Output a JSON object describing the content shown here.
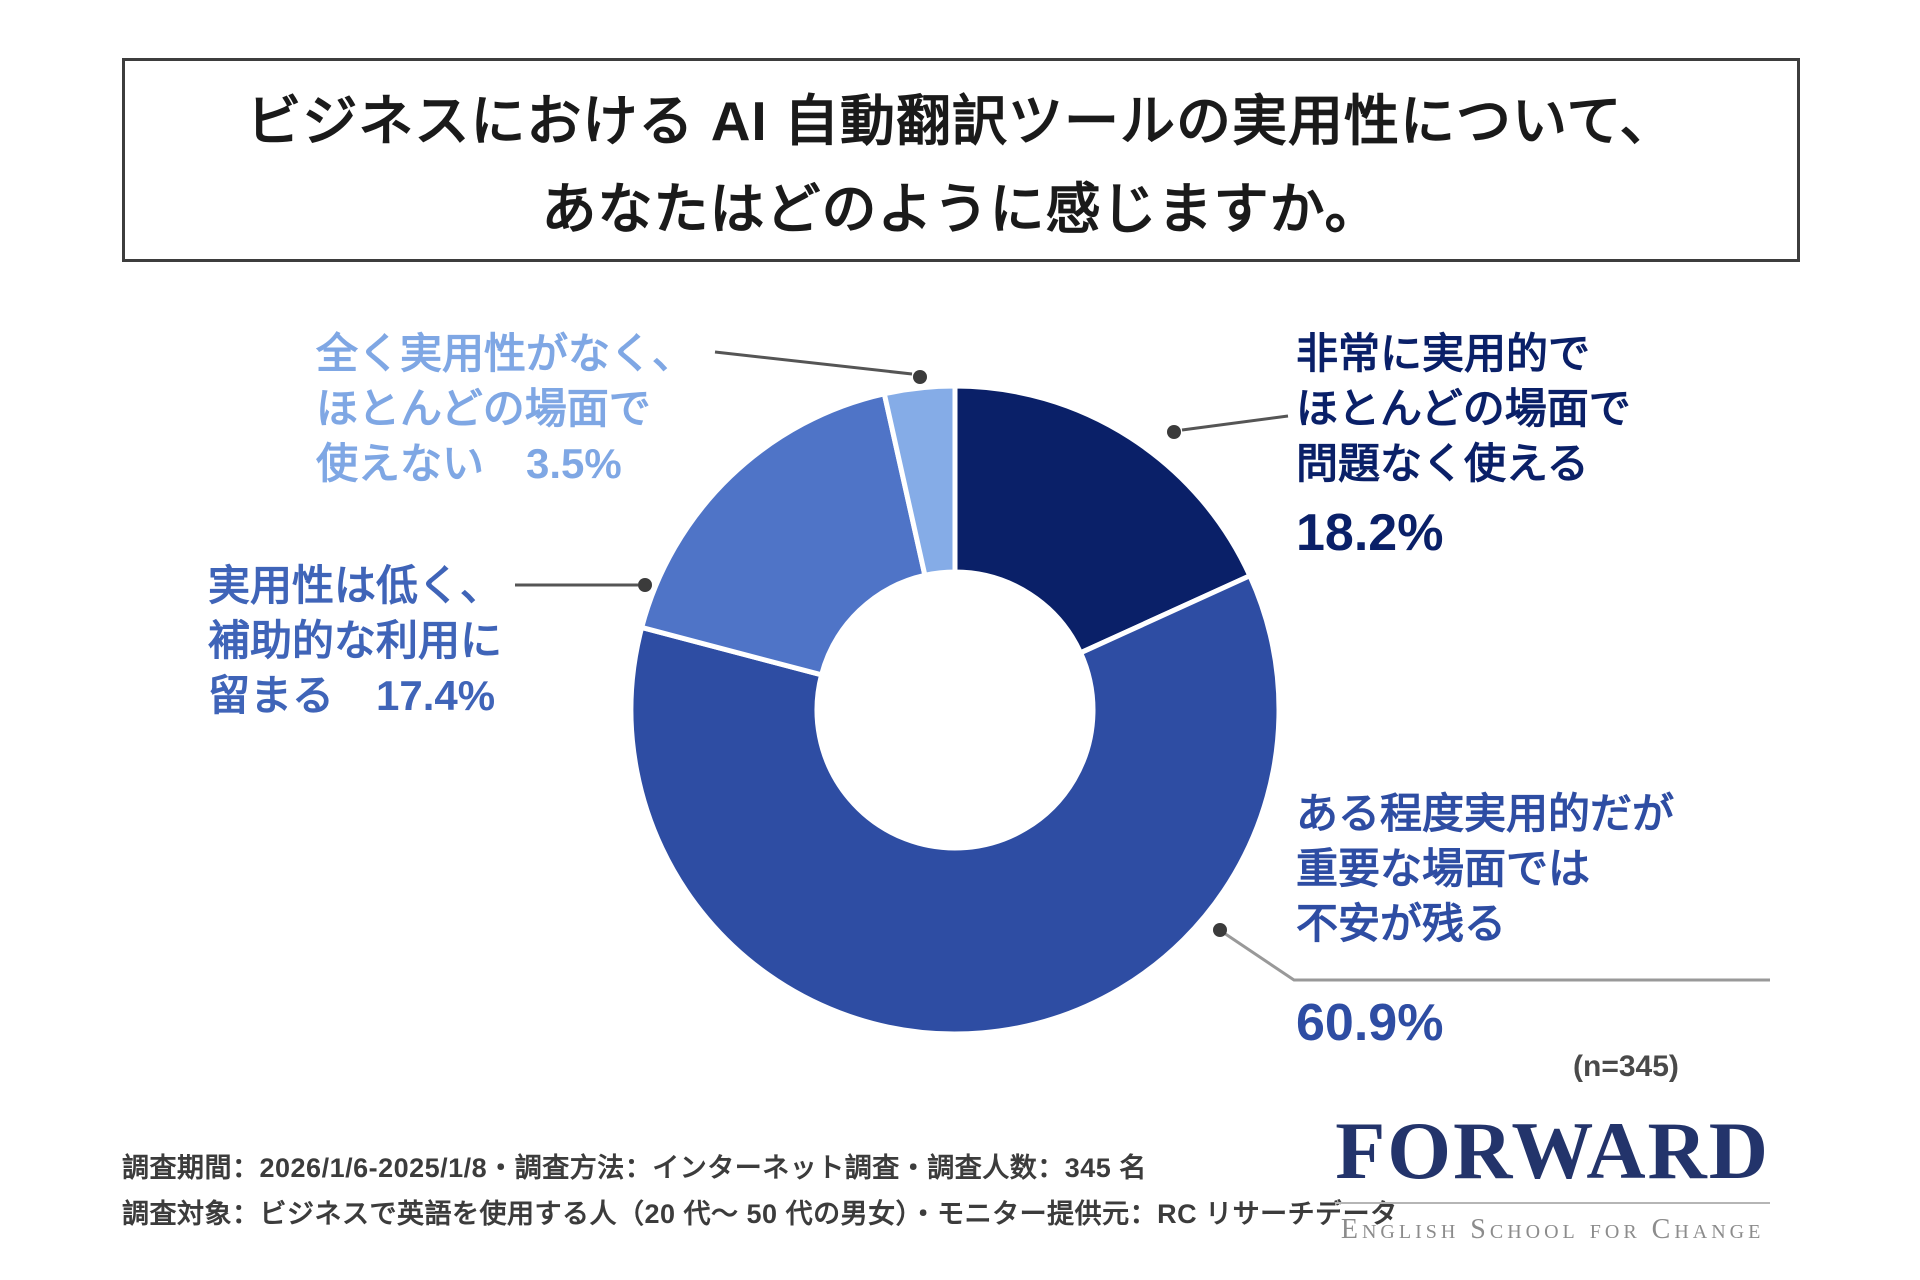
{
  "title": {
    "line1": "ビジネスにおける AI 自動翻訳ツールの実用性について、",
    "line2": "あなたはどのように感じますか。"
  },
  "chart_data": {
    "type": "pie",
    "subtype": "donut",
    "title": "ビジネスにおける AI 自動翻訳ツールの実用性について、あなたはどのように感じますか。",
    "unit": "%",
    "n": 345,
    "start_angle_deg": 0,
    "direction": "clockwise",
    "legend_position": "callouts",
    "segments": [
      {
        "label": "非常に実用的でほとんどの場面で問題なく使える",
        "value": 18.2,
        "color": "#0a2068"
      },
      {
        "label": "ある程度実用的だが重要な場面では不安が残る",
        "value": 60.9,
        "color": "#2e4da3"
      },
      {
        "label": "実用性は低く、補助的な利用に留まる",
        "value": 17.4,
        "color": "#4f74c7"
      },
      {
        "label": "全く実用性がなく、ほとんどの場面で使えない",
        "value": 3.5,
        "color": "#85ace7"
      }
    ]
  },
  "callouts": {
    "very_practical": {
      "line1": "非常に実用的で",
      "line2": "ほとんどの場面で",
      "line3": "問題なく使える",
      "pct": "18.2%"
    },
    "somewhat_practical": {
      "line1": "ある程度実用的だが",
      "line2": "重要な場面では",
      "line3": "不安が残る",
      "pct": "60.9%"
    },
    "low_practicality": {
      "line1": "実用性は低く、",
      "line2": "補助的な利用に",
      "line3": "留まる　17.4%"
    },
    "not_practical": {
      "line1": "全く実用性がなく、",
      "line2": "ほとんどの場面で",
      "line3": "使えない　3.5%"
    }
  },
  "sample_note": "(n=345)",
  "footnote": {
    "line1": "調査期間：2026/1/6-2025/1/8・調査方法：インターネット調査・調査人数：345 名",
    "line2": "調査対象：ビジネスで英語を使用する人（20 代〜 50 代の男女）・モニター提供元：RC リサーチデータ"
  },
  "logo": {
    "name": "FORWARD",
    "tagline": "English School for Change"
  }
}
